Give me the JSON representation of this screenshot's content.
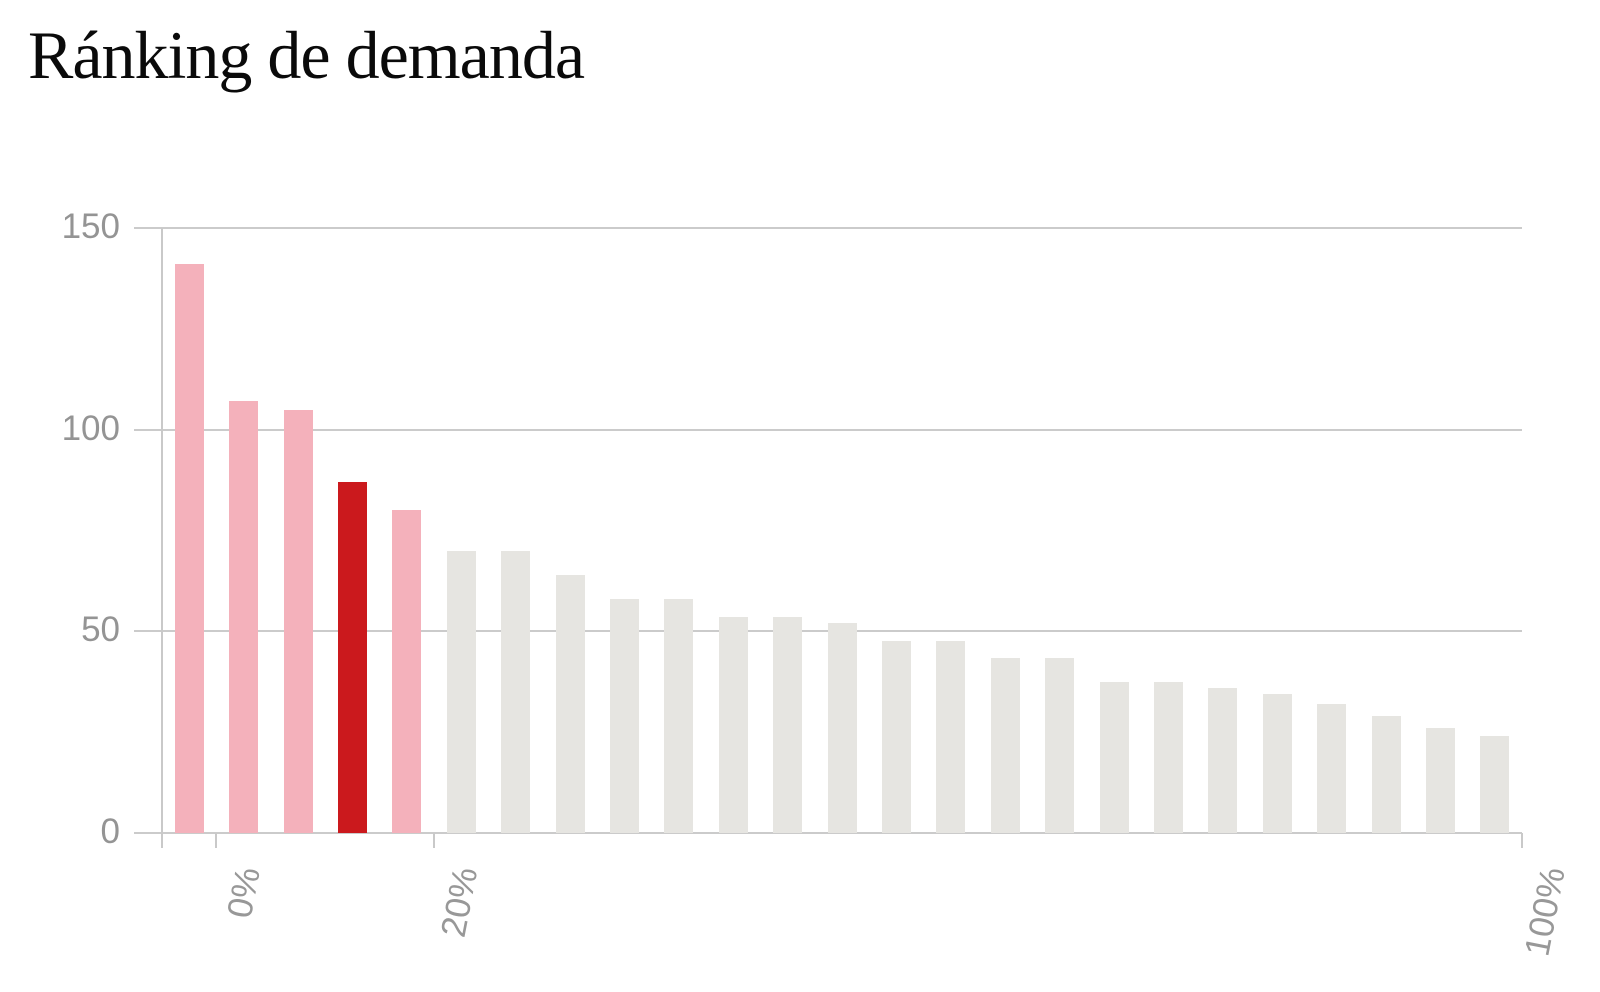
{
  "title": "Ránking de demanda",
  "chart_data": {
    "type": "bar",
    "title": "Ránking de demanda",
    "values": [
      141,
      107,
      105,
      87,
      80,
      70,
      70,
      64,
      58,
      58,
      53.5,
      53.5,
      52,
      47.5,
      47.5,
      43.5,
      43.5,
      37.5,
      37.5,
      36,
      34.5,
      32,
      29,
      26,
      24
    ],
    "bar_roles": [
      "light",
      "light",
      "light",
      "strong",
      "light",
      "base",
      "base",
      "base",
      "base",
      "base",
      "base",
      "base",
      "base",
      "base",
      "base",
      "base",
      "base",
      "base",
      "base",
      "base",
      "base",
      "base",
      "base",
      "base",
      "base"
    ],
    "highlighted_bar_index": 3,
    "ylim": [
      0,
      150
    ],
    "yticks": [
      0,
      50,
      100,
      150
    ],
    "ytick_labels": [
      "0",
      "50",
      "100",
      "150"
    ],
    "xticks": [
      {
        "label": "0%",
        "after_bar": 1
      },
      {
        "label": "20%",
        "after_bar": 5
      },
      {
        "label": "100%",
        "after_bar": 25
      }
    ],
    "grid": "horizontal",
    "legend": "none",
    "colors": {
      "highlight_strong": "#cb191d",
      "highlight_light": "#f4b1bb",
      "base_bar": "#e6e5e1",
      "grid_line": "#cbcbcb",
      "axis_line": "#c9c9c9",
      "tick_text": "#949494",
      "title_text": "#0a0a0a"
    }
  }
}
